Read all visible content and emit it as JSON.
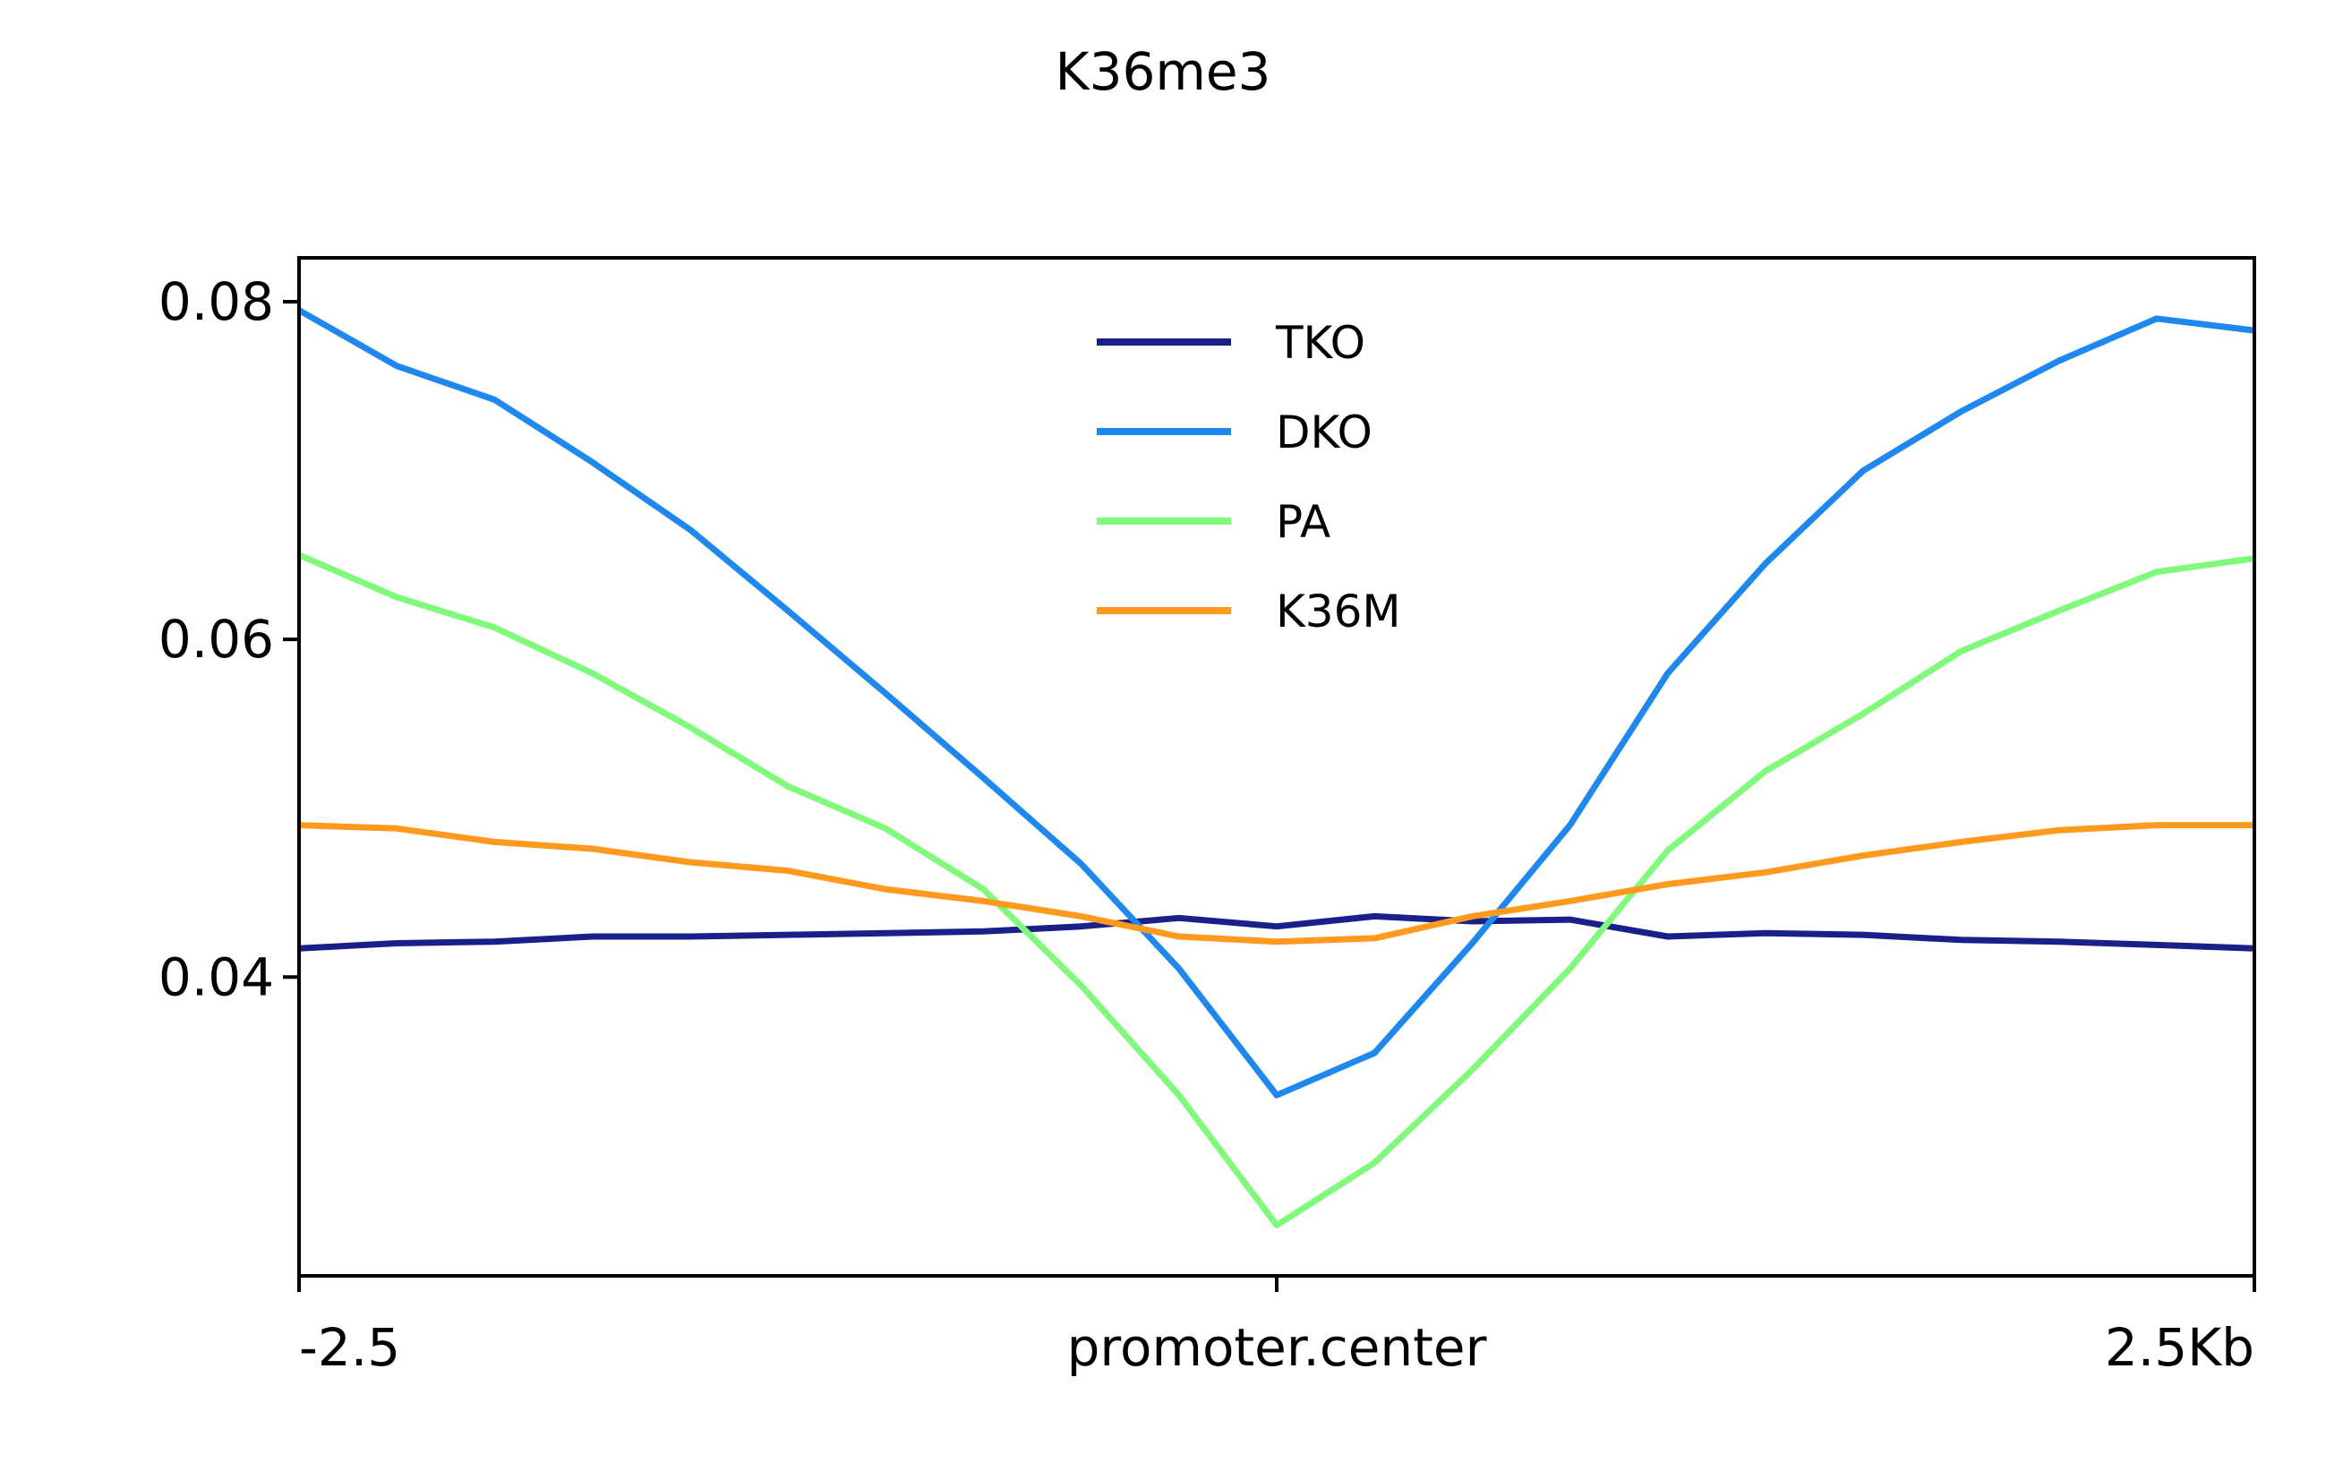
{
  "chart_data": {
    "type": "line",
    "title": "K36me3",
    "xlabel": "",
    "ylabel": "",
    "x_ticks": [
      {
        "value": -2.5,
        "label": "-2.5"
      },
      {
        "value": 0,
        "label": "promoter.center"
      },
      {
        "value": 2.5,
        "label": "2.5Kb"
      }
    ],
    "y_ticks": [
      {
        "value": 0.04,
        "label": "0.04"
      },
      {
        "value": 0.06,
        "label": "0.06"
      },
      {
        "value": 0.08,
        "label": "0.08"
      }
    ],
    "xlim": [
      -2.5,
      2.5
    ],
    "ylim": [
      0.0223,
      0.0826
    ],
    "grid": false,
    "legend_position": "top-center",
    "x": [
      -2.5,
      -2.25,
      -2.0,
      -1.75,
      -1.5,
      -1.25,
      -1.0,
      -0.75,
      -0.5,
      -0.25,
      0.0,
      0.25,
      0.5,
      0.75,
      1.0,
      1.25,
      1.5,
      1.75,
      2.0,
      2.25,
      2.5
    ],
    "series": [
      {
        "name": "TKO",
        "color": "#1a1f8a",
        "values": [
          0.0417,
          0.042,
          0.0421,
          0.0424,
          0.0424,
          0.0425,
          0.0426,
          0.0427,
          0.043,
          0.0435,
          0.043,
          0.0436,
          0.0433,
          0.0434,
          0.0424,
          0.0426,
          0.0425,
          0.0422,
          0.0421,
          0.0419,
          0.0417
        ]
      },
      {
        "name": "DKO",
        "color": "#1e88f2",
        "values": [
          0.0795,
          0.0762,
          0.0742,
          0.0705,
          0.0665,
          0.0617,
          0.0568,
          0.0518,
          0.0467,
          0.0405,
          0.033,
          0.0355,
          0.042,
          0.049,
          0.058,
          0.0645,
          0.07,
          0.0735,
          0.0765,
          0.079,
          0.0783
        ]
      },
      {
        "name": "PA",
        "color": "#80fa7a",
        "values": [
          0.065,
          0.0625,
          0.0607,
          0.058,
          0.0548,
          0.0513,
          0.0488,
          0.0452,
          0.0395,
          0.033,
          0.0253,
          0.029,
          0.0345,
          0.0405,
          0.0475,
          0.0522,
          0.0556,
          0.0593,
          0.0617,
          0.064,
          0.0648
        ]
      },
      {
        "name": "K36M",
        "color": "#ff9a1e",
        "values": [
          0.049,
          0.0488,
          0.048,
          0.0476,
          0.0468,
          0.0463,
          0.0452,
          0.0445,
          0.0436,
          0.0424,
          0.0421,
          0.0423,
          0.0436,
          0.0445,
          0.0455,
          0.0462,
          0.0472,
          0.048,
          0.0487,
          0.049,
          0.049
        ]
      }
    ]
  }
}
